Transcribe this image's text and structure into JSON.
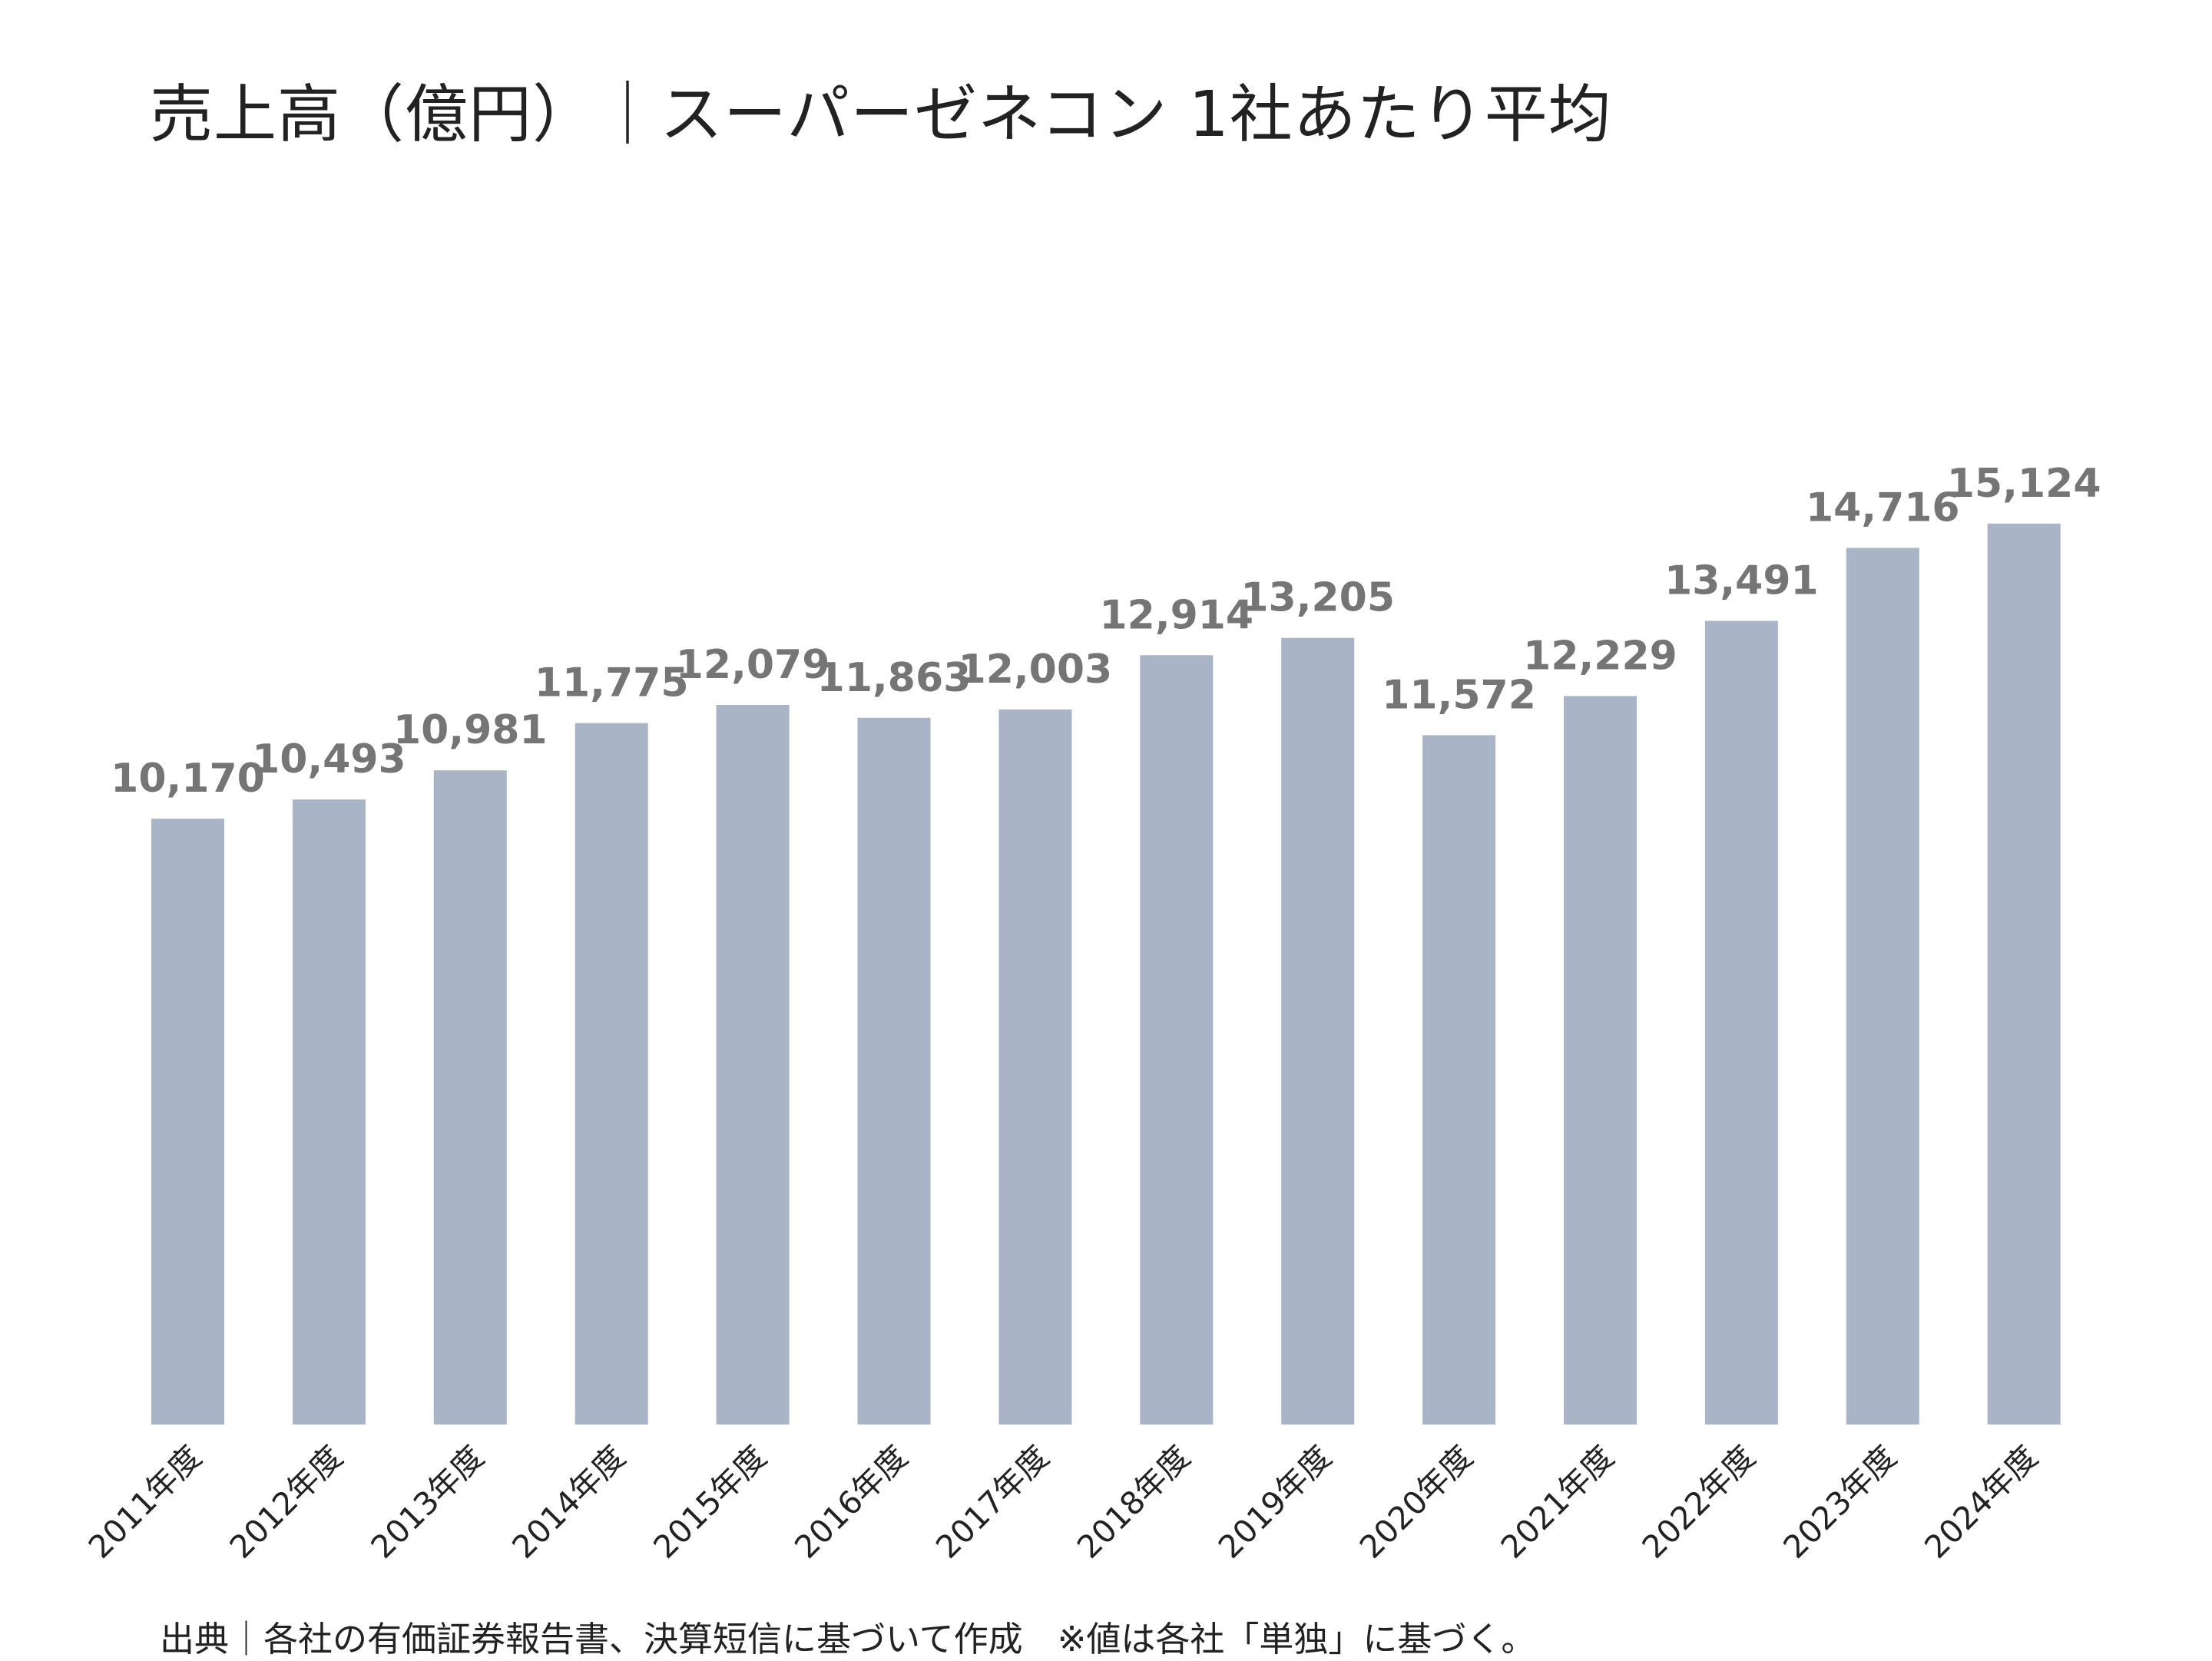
{
  "chart_data": {
    "type": "bar",
    "title": "売上高（億円）｜スーパーゼネコン 1社あたり平均",
    "categories": [
      "2011年度",
      "2012年度",
      "2013年度",
      "2014年度",
      "2015年度",
      "2016年度",
      "2017年度",
      "2018年度",
      "2019年度",
      "2020年度",
      "2021年度",
      "2022年度",
      "2023年度",
      "2024年度"
    ],
    "values": [
      10170,
      10493,
      10981,
      11775,
      12079,
      11863,
      12003,
      12914,
      13205,
      11572,
      12229,
      13491,
      14716,
      15124
    ],
    "value_labels": [
      "10,170",
      "10,493",
      "10,981",
      "11,775",
      "12,079",
      "11,863",
      "12,003",
      "12,914",
      "13,205",
      "11,572",
      "12,229",
      "13,491",
      "14,716",
      "15,124"
    ],
    "ylim": [
      0,
      16000
    ],
    "grid": false,
    "legend": "none",
    "bar_color": "#a9b5c6",
    "label_color": "#757575"
  },
  "source_note": "出典｜各社の有価証券報告書、決算短信に基づいて作成　※値は各社「単独」に基づく。"
}
